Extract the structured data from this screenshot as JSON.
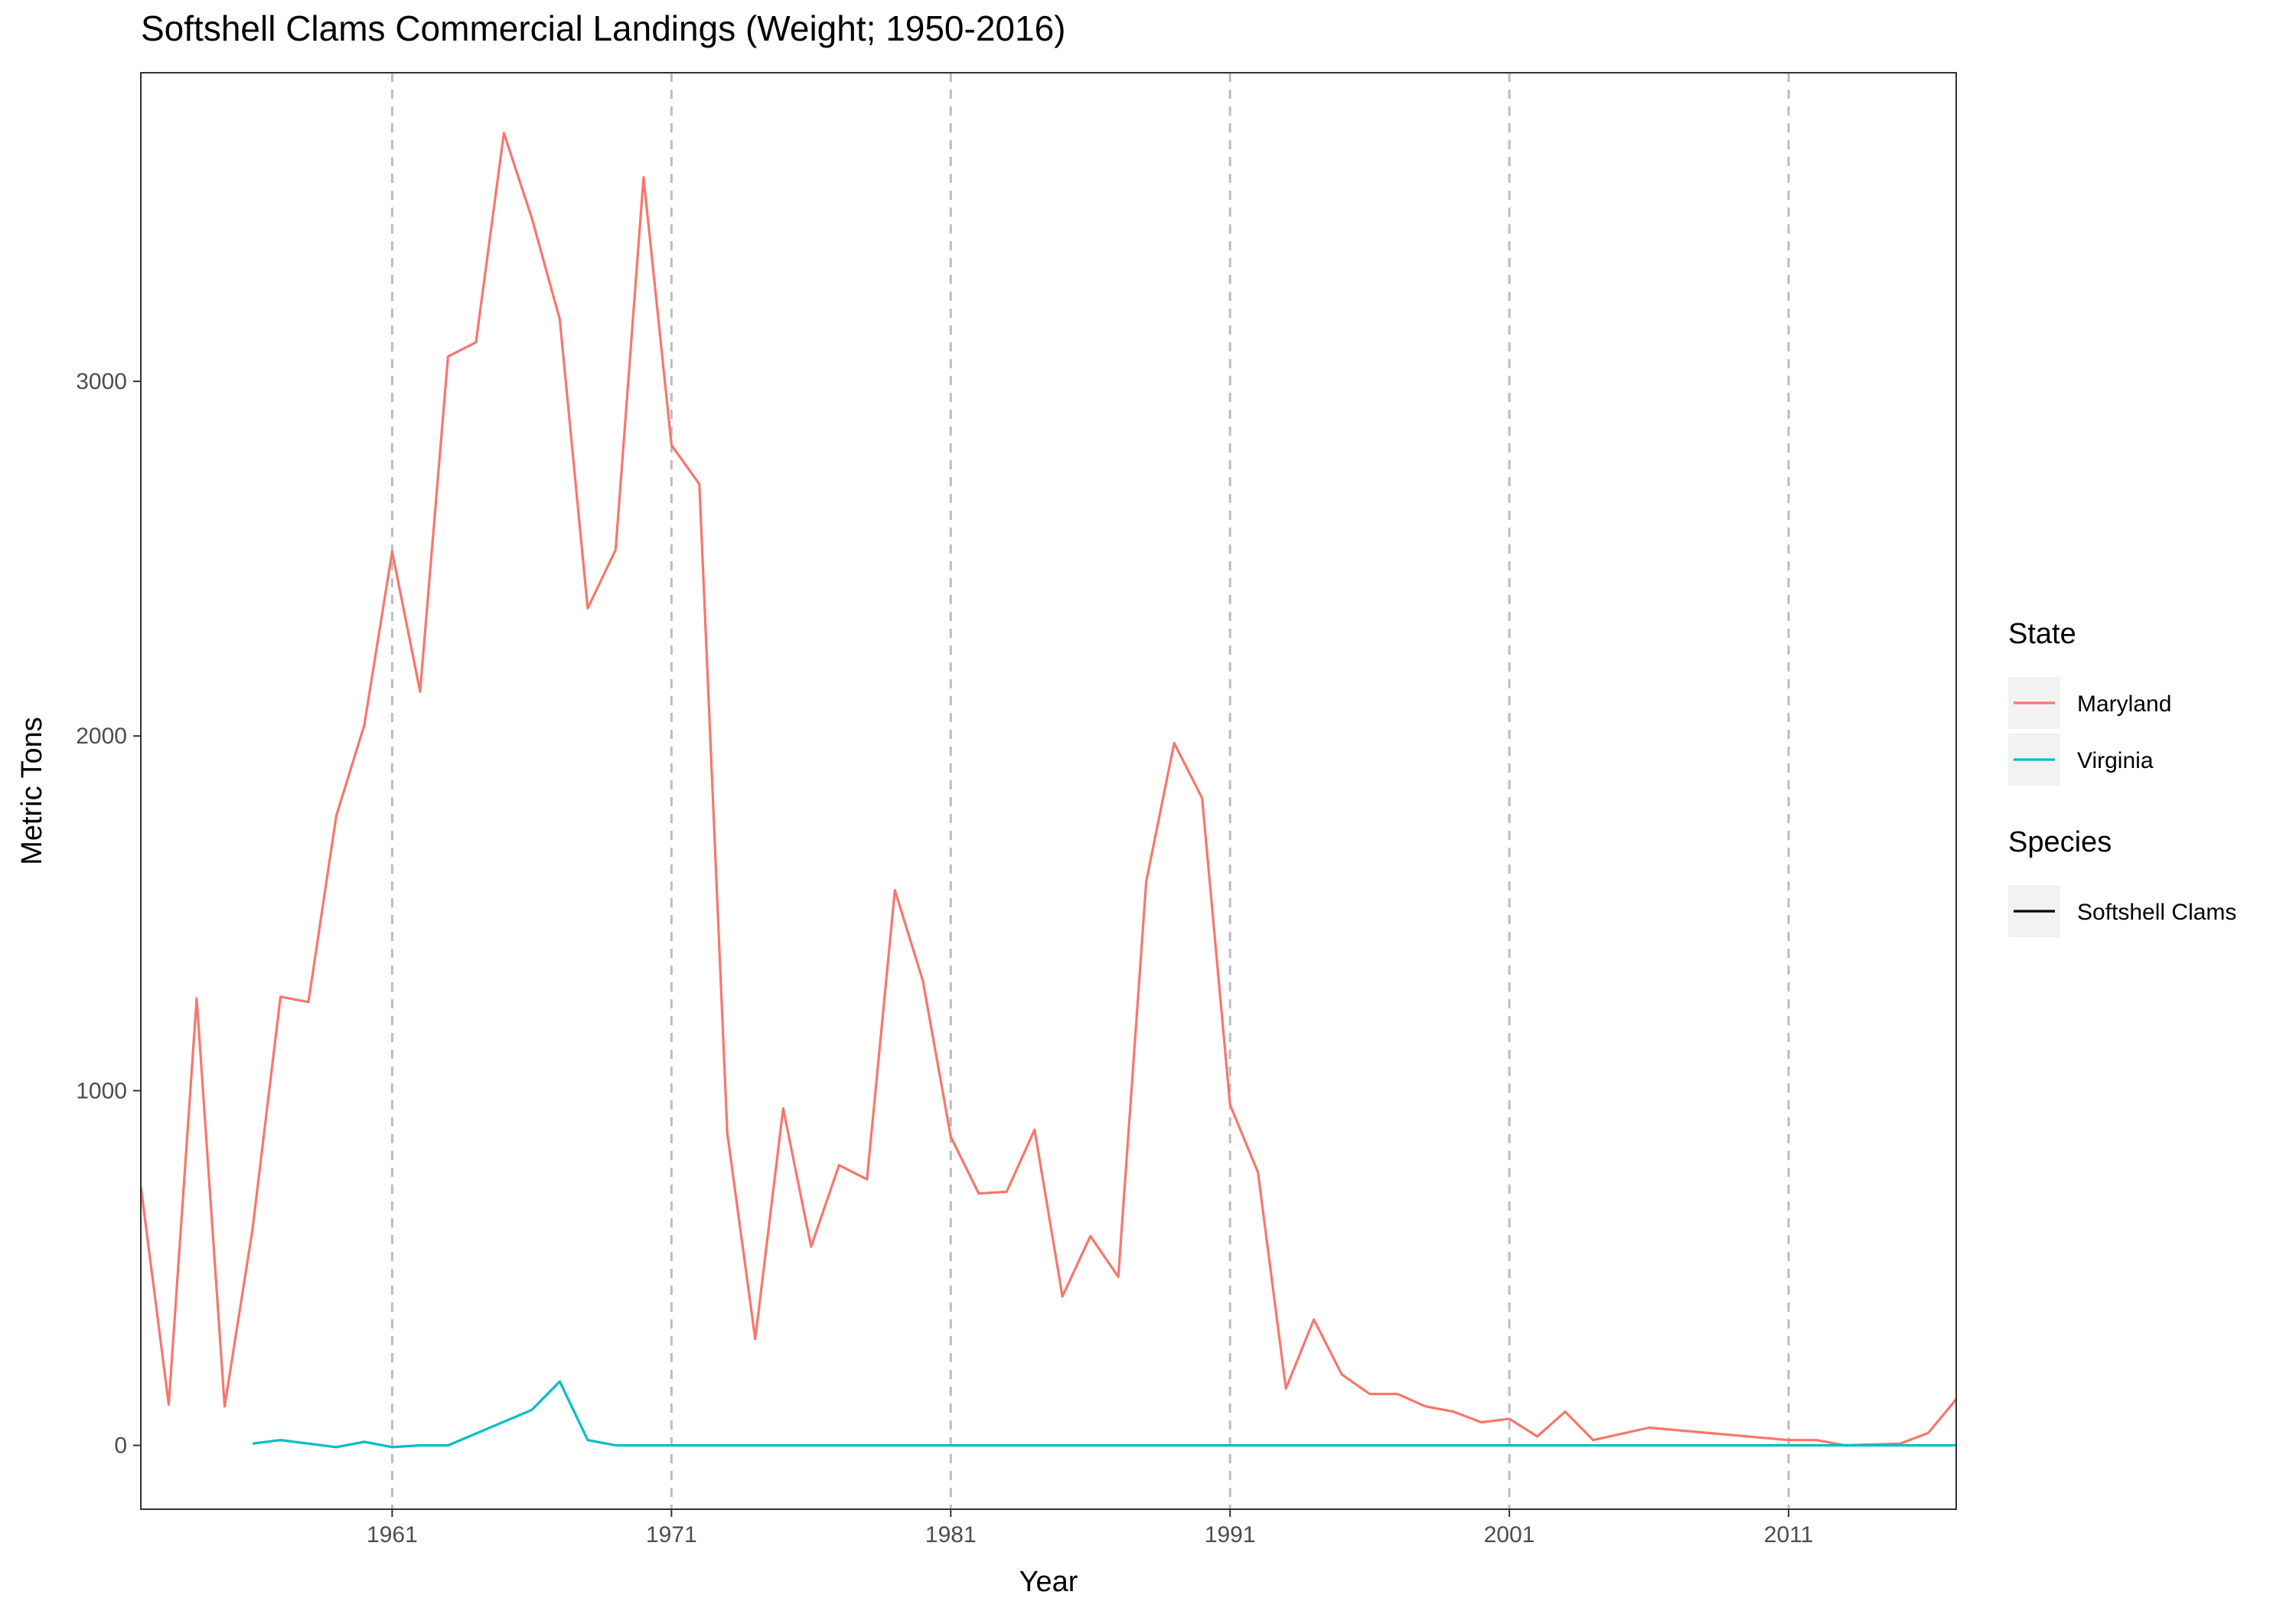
{
  "chart_data": {
    "type": "line",
    "title": "Softshell Clams Commercial Landings (Weight; 1950-2016)",
    "xlabel": "Year",
    "ylabel": "Metric Tons",
    "xlim": [
      1952,
      2017
    ],
    "ylim": [
      -180,
      3870
    ],
    "x_ticks": [
      1961,
      1971,
      1981,
      1991,
      2001,
      2011
    ],
    "y_ticks": [
      0,
      1000,
      2000,
      3000
    ],
    "vertical_reference_lines": [
      1961,
      1971,
      1981,
      1991,
      2001,
      2011
    ],
    "grid": false,
    "legend_position": "right",
    "series": [
      {
        "name": "Maryland",
        "color": "#F8766D",
        "x": [
          1952,
          1953,
          1954,
          1955,
          1956,
          1957,
          1958,
          1959,
          1960,
          1961,
          1962,
          1963,
          1964,
          1965,
          1966,
          1967,
          1968,
          1969,
          1970,
          1971,
          1972,
          1973,
          1974,
          1975,
          1976,
          1977,
          1978,
          1979,
          1980,
          1981,
          1982,
          1983,
          1984,
          1985,
          1986,
          1987,
          1988,
          1989,
          1990,
          1991,
          1992,
          1993,
          1994,
          1995,
          1996,
          1997,
          1998,
          1999,
          2000,
          2001,
          2002,
          2003,
          2004,
          2006,
          2011,
          2012,
          2013,
          2015,
          2016,
          2017
        ],
        "y": [
          730,
          115,
          1260,
          110,
          610,
          1265,
          1250,
          1775,
          2030,
          2520,
          2125,
          3070,
          3110,
          3700,
          3460,
          3175,
          2360,
          2525,
          3575,
          2820,
          2710,
          880,
          300,
          950,
          560,
          790,
          750,
          1565,
          1310,
          870,
          710,
          715,
          890,
          420,
          590,
          475,
          1590,
          1980,
          1825,
          960,
          770,
          160,
          355,
          200,
          145,
          145,
          110,
          95,
          65,
          75,
          25,
          95,
          15,
          50,
          15,
          15,
          0,
          5,
          35,
          130
        ]
      },
      {
        "name": "Virginia",
        "color": "#00BFC4",
        "x": [
          1956,
          1957,
          1958,
          1959,
          1960,
          1961,
          1962,
          1963,
          1966,
          1967,
          1968,
          1969,
          1970,
          1980,
          1990,
          2000,
          2010,
          2017
        ],
        "y": [
          5,
          15,
          5,
          -5,
          10,
          -5,
          0,
          0,
          100,
          180,
          15,
          0,
          0,
          0,
          0,
          0,
          0,
          0
        ]
      }
    ],
    "legends": [
      {
        "title": "State",
        "entries": [
          {
            "label": "Maryland",
            "color": "#F8766D"
          },
          {
            "label": "Virginia",
            "color": "#00BFC4"
          }
        ]
      },
      {
        "title": "Species",
        "entries": [
          {
            "label": "Softshell Clams",
            "color": "#000000"
          }
        ]
      }
    ]
  }
}
